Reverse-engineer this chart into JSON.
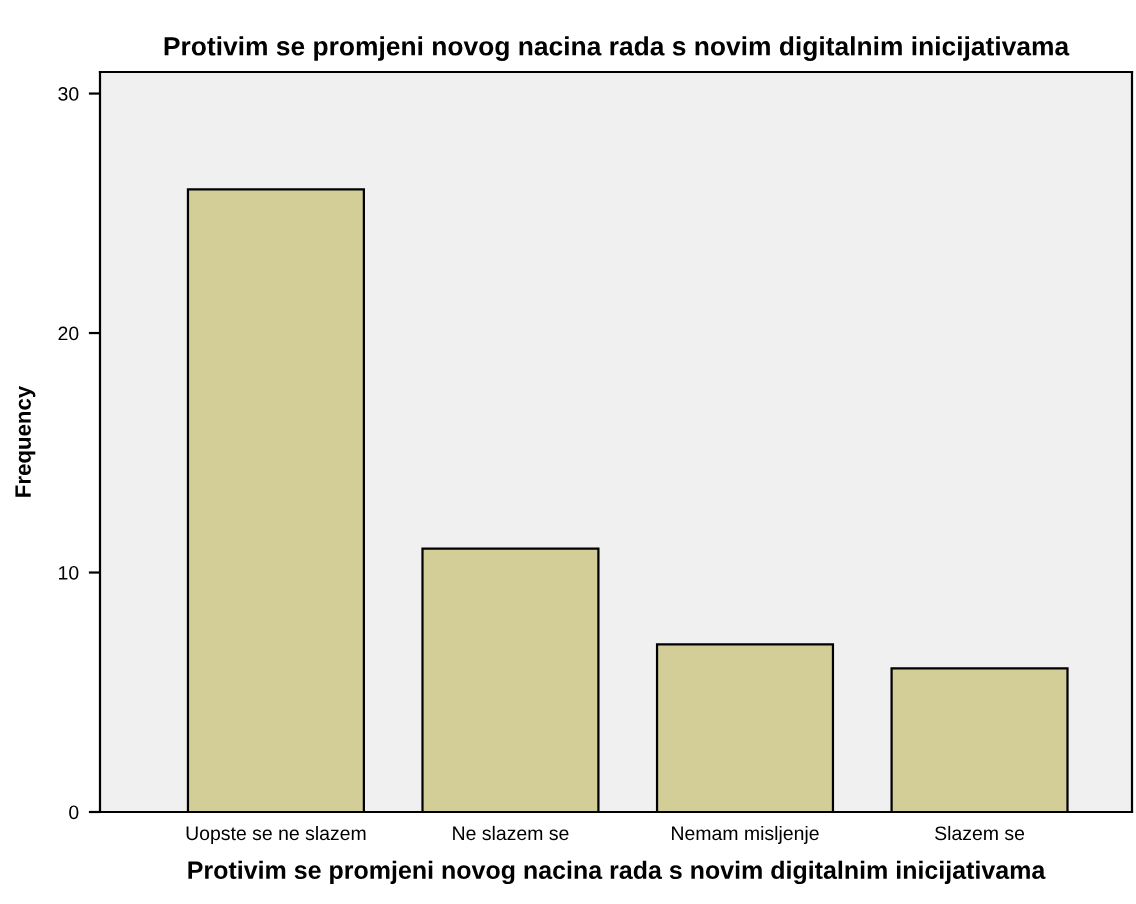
{
  "chart_data": {
    "type": "bar",
    "title": "Protivim se promjeni novog nacina rada s novim digitalnim inicijativama",
    "xlabel": "Protivim se promjeni novog nacina rada s novim digitalnim inicijativama",
    "ylabel": "Frequency",
    "categories": [
      "Uopste se ne slazem",
      "Ne slazem se",
      "Nemam misljenje",
      "Slazem se"
    ],
    "values": [
      26,
      11,
      7,
      6
    ],
    "color": "#d3ce97",
    "ylim": [
      0,
      30.9
    ],
    "yticks": [
      0,
      10,
      20,
      30
    ],
    "grid": false,
    "legend": false
  }
}
